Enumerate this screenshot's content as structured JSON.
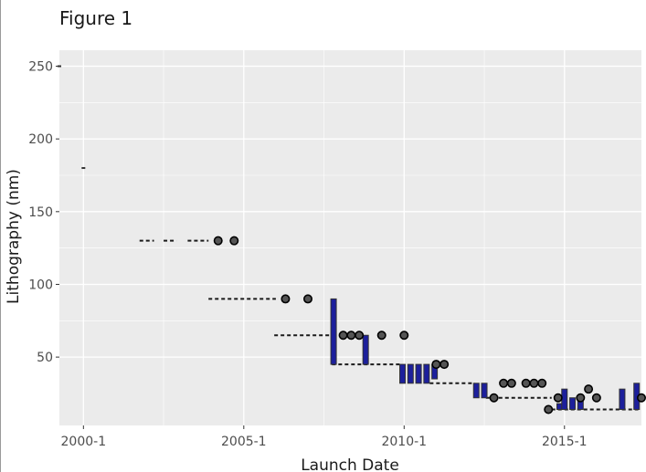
{
  "figure_title": "Figure 1",
  "chart_data": {
    "type": "box",
    "title": "Figure 1",
    "xlabel": "Launch Date",
    "ylabel": "Lithography (nm)",
    "x_ticks": [
      {
        "value": 2000,
        "label": "2000-1"
      },
      {
        "value": 2005,
        "label": "2005-1"
      },
      {
        "value": 2010,
        "label": "2010-1"
      },
      {
        "value": 2015,
        "label": "2015-1"
      }
    ],
    "y_ticks": [
      50,
      100,
      150,
      200,
      250
    ],
    "xlim": [
      1999.25,
      2017.4
    ],
    "ylim": [
      3,
      261
    ],
    "grid": true,
    "colors": {
      "panel_background": "#ebebeb",
      "gridline": "#ffffff",
      "box_fill": "#1c1f9c",
      "box_outline": "#333333",
      "point": "#000000",
      "dashed_line": "#1a1a1a"
    },
    "boxes": [
      {
        "x": 1999.25,
        "low": 250,
        "high": 250
      },
      {
        "x": 2000.0,
        "low": 180,
        "high": 180
      },
      {
        "x": 2007.8,
        "low": 45,
        "high": 90
      },
      {
        "x": 2008.8,
        "low": 45,
        "high": 65
      },
      {
        "x": 2009.95,
        "low": 32,
        "high": 45
      },
      {
        "x": 2010.2,
        "low": 32,
        "high": 45
      },
      {
        "x": 2010.45,
        "low": 32,
        "high": 45
      },
      {
        "x": 2010.7,
        "low": 32,
        "high": 45
      },
      {
        "x": 2010.95,
        "low": 35,
        "high": 45
      },
      {
        "x": 2012.25,
        "low": 22,
        "high": 32
      },
      {
        "x": 2012.5,
        "low": 22,
        "high": 32
      },
      {
        "x": 2014.85,
        "low": 14,
        "high": 18
      },
      {
        "x": 2015.0,
        "low": 14,
        "high": 28
      },
      {
        "x": 2015.25,
        "low": 14,
        "high": 22
      },
      {
        "x": 2015.5,
        "low": 14,
        "high": 22
      },
      {
        "x": 2016.8,
        "low": 14,
        "high": 28
      },
      {
        "x": 2017.25,
        "low": 14,
        "high": 32
      }
    ],
    "points": [
      {
        "x": 2004.2,
        "y": 130
      },
      {
        "x": 2004.7,
        "y": 130
      },
      {
        "x": 2006.3,
        "y": 90
      },
      {
        "x": 2007.0,
        "y": 90
      },
      {
        "x": 2008.1,
        "y": 65
      },
      {
        "x": 2008.35,
        "y": 65
      },
      {
        "x": 2008.6,
        "y": 65
      },
      {
        "x": 2009.3,
        "y": 65
      },
      {
        "x": 2010.0,
        "y": 65
      },
      {
        "x": 2011.0,
        "y": 45
      },
      {
        "x": 2011.25,
        "y": 45
      },
      {
        "x": 2012.8,
        "y": 22
      },
      {
        "x": 2013.1,
        "y": 32
      },
      {
        "x": 2013.35,
        "y": 32
      },
      {
        "x": 2013.8,
        "y": 32
      },
      {
        "x": 2014.05,
        "y": 32
      },
      {
        "x": 2014.3,
        "y": 32
      },
      {
        "x": 2014.5,
        "y": 14
      },
      {
        "x": 2014.8,
        "y": 22
      },
      {
        "x": 2015.5,
        "y": 22
      },
      {
        "x": 2015.75,
        "y": 28
      },
      {
        "x": 2016.0,
        "y": 22
      },
      {
        "x": 2017.4,
        "y": 22
      }
    ],
    "dashed_segments": [
      {
        "x1": 2001.75,
        "x2": 2002.2,
        "y": 130
      },
      {
        "x1": 2002.5,
        "x2": 2002.9,
        "y": 130
      },
      {
        "x1": 2003.25,
        "x2": 2003.9,
        "y": 130
      },
      {
        "x1": 2003.9,
        "x2": 2006.0,
        "y": 90
      },
      {
        "x1": 2005.95,
        "x2": 2007.75,
        "y": 65
      },
      {
        "x1": 2007.75,
        "x2": 2009.9,
        "y": 45
      },
      {
        "x1": 2010.8,
        "x2": 2012.2,
        "y": 32
      },
      {
        "x1": 2012.55,
        "x2": 2014.6,
        "y": 22
      },
      {
        "x1": 2014.6,
        "x2": 2017.3,
        "y": 14
      }
    ]
  }
}
